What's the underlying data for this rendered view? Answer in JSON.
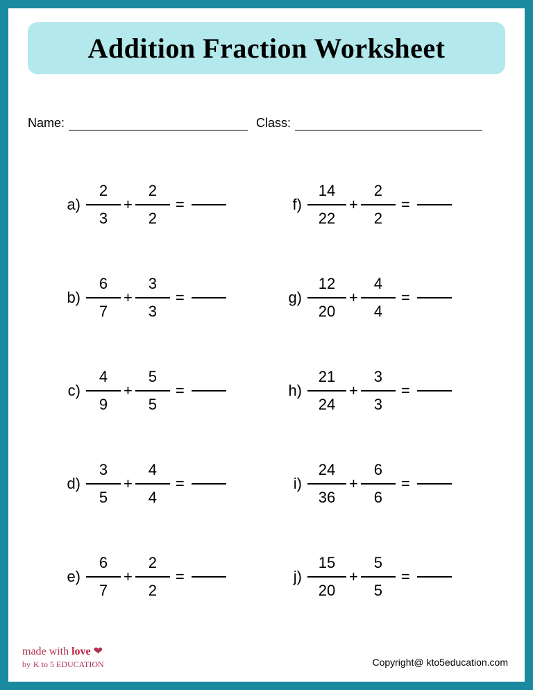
{
  "title": "Addition Fraction Worksheet",
  "fields": {
    "name_label": "Name:",
    "class_label": "Class:"
  },
  "colors": {
    "border": "#1a8a9e",
    "banner_bg": "#b3e8ec",
    "text": "#000000",
    "background": "#ffffff"
  },
  "typography": {
    "title_fontsize": 40,
    "title_weight": 900,
    "body_fontsize": 22,
    "field_fontsize": 18,
    "footer_fontsize": 14
  },
  "problems_left": [
    {
      "label": "a)",
      "n1": "2",
      "d1": "3",
      "n2": "2",
      "d2": "2"
    },
    {
      "label": "b)",
      "n1": "6",
      "d1": "7",
      "n2": "3",
      "d2": "3"
    },
    {
      "label": "c)",
      "n1": "4",
      "d1": "9",
      "n2": "5",
      "d2": "5"
    },
    {
      "label": "d)",
      "n1": "3",
      "d1": "5",
      "n2": "4",
      "d2": "4"
    },
    {
      "label": "e)",
      "n1": "6",
      "d1": "7",
      "n2": "2",
      "d2": "2"
    }
  ],
  "problems_right": [
    {
      "label": "f)",
      "n1": "14",
      "d1": "22",
      "n2": "2",
      "d2": "2"
    },
    {
      "label": "g)",
      "n1": "12",
      "d1": "20",
      "n2": "4",
      "d2": "4"
    },
    {
      "label": "h)",
      "n1": "21",
      "d1": "24",
      "n2": "3",
      "d2": "3"
    },
    {
      "label": "i)",
      "n1": "24",
      "d1": "36",
      "n2": "6",
      "d2": "6"
    },
    {
      "label": "j)",
      "n1": "15",
      "d1": "20",
      "n2": "5",
      "d2": "5"
    }
  ],
  "operators": {
    "plus": "+",
    "equals": "="
  },
  "footer": {
    "made_with": "made with",
    "love": "love",
    "by": "by",
    "brand": "K to 5 EDUCATION",
    "copyright": "Copyright@ kto5education.com"
  }
}
